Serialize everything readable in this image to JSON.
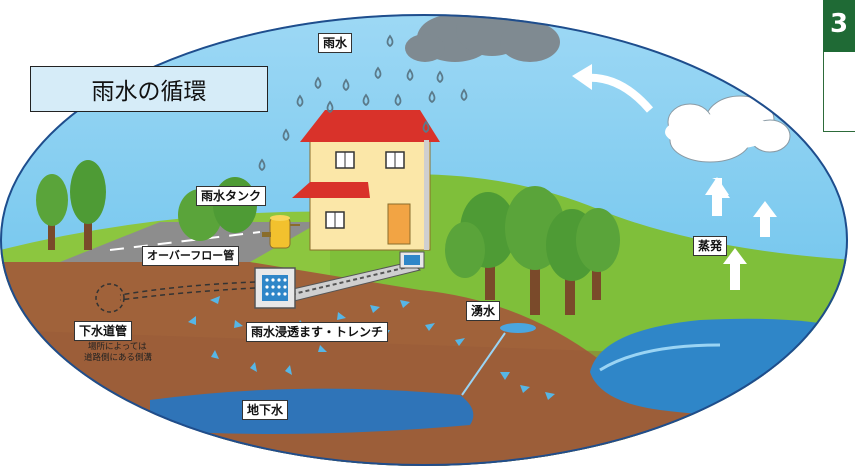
{
  "title": "雨水の循環",
  "labels": {
    "rain": "雨水",
    "rain_tank": "雨水タンク",
    "overflow_pipe": "オーバーフロー管",
    "sewer": "下水道管",
    "sewer_note_1": "場所によっては",
    "sewer_note_2": "道路側にある側溝",
    "infiltration": "雨水浸透ます・トレンチ",
    "spring": "湧水",
    "groundwater": "地下水",
    "evaporation": "蒸発"
  },
  "corner": {
    "text": "3"
  },
  "colors": {
    "sky": "#6ec6ee",
    "soil": "#a0623a",
    "grass": "#8cc63f",
    "water": "#2f86c8",
    "roof": "#d9322a",
    "house_wall": "#fbe7a8",
    "cloud_dark": "#7f8a91",
    "arrow": "#56b6e6"
  }
}
